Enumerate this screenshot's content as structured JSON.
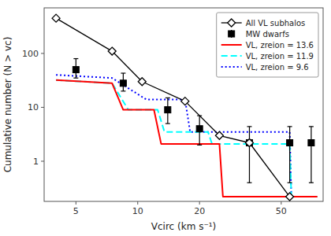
{
  "chart_data": {
    "type": "line",
    "xlabel": "Vcirc (km s⁻¹)",
    "ylabel": "Cumulative number (N > vc)",
    "log": true,
    "xlim": [
      3.5,
      80
    ],
    "ylim": [
      0.18,
      700
    ],
    "xticks": [
      5,
      10,
      20,
      50
    ],
    "yticks": [
      1,
      10,
      100
    ],
    "grid": false,
    "legend": "upper right",
    "series": [
      {
        "name": "All VL subhalos",
        "type": "line",
        "color": "#000000",
        "marker": "diamond",
        "line_style": "solid",
        "x": [
          4.0,
          7.5,
          10.5,
          17.0,
          25.0,
          35.0,
          55.0
        ],
        "values": [
          450,
          110,
          30,
          13,
          3,
          2.2,
          0.22
        ]
      },
      {
        "name": "MW dwarfs",
        "type": "scatter",
        "color": "#000000",
        "marker": "square",
        "line_style": "none",
        "x": [
          5.0,
          8.5,
          14.0,
          20.0,
          35.0,
          55.0,
          70.0
        ],
        "values": [
          50,
          28,
          9,
          4,
          2.2,
          2.2,
          2.2
        ],
        "error_low": [
          15,
          8,
          4,
          2,
          1.8,
          1.8,
          1.8
        ],
        "error_high": [
          30,
          15,
          6,
          3,
          2.2,
          2.2,
          2.2
        ]
      },
      {
        "name": "VL, zreion = 13.6",
        "type": "line",
        "color": "red",
        "marker": "none",
        "line_style": "solid",
        "x": [
          4.0,
          7.5,
          8.5,
          12.0,
          13.0,
          25.0,
          26.0,
          55.0,
          56.0,
          75.0
        ],
        "values": [
          32,
          28,
          9,
          9,
          2.1,
          2.1,
          0.22,
          0.22,
          0.22,
          0.22
        ]
      },
      {
        "name": "VL, zreion = 11.9",
        "type": "line",
        "color": "cyan",
        "marker": "none",
        "line_style": "dashed",
        "x": [
          4.0,
          7.5,
          9.0,
          12.5,
          13.5,
          22.0,
          23.0,
          55.0,
          56.0,
          75.0
        ],
        "values": [
          32,
          28,
          9,
          9,
          3.5,
          3.5,
          2.1,
          2.1,
          0.22,
          0.22
        ]
      },
      {
        "name": "VL, zreion = 9.6",
        "type": "line",
        "color": "blue",
        "marker": "none",
        "line_style": "dotted",
        "x": [
          4.0,
          7.5,
          11.0,
          17.0,
          18.0,
          55.0,
          56.0,
          75.0
        ],
        "values": [
          40,
          35,
          14,
          14,
          3.5,
          3.5,
          0.22,
          0.22
        ]
      }
    ]
  }
}
